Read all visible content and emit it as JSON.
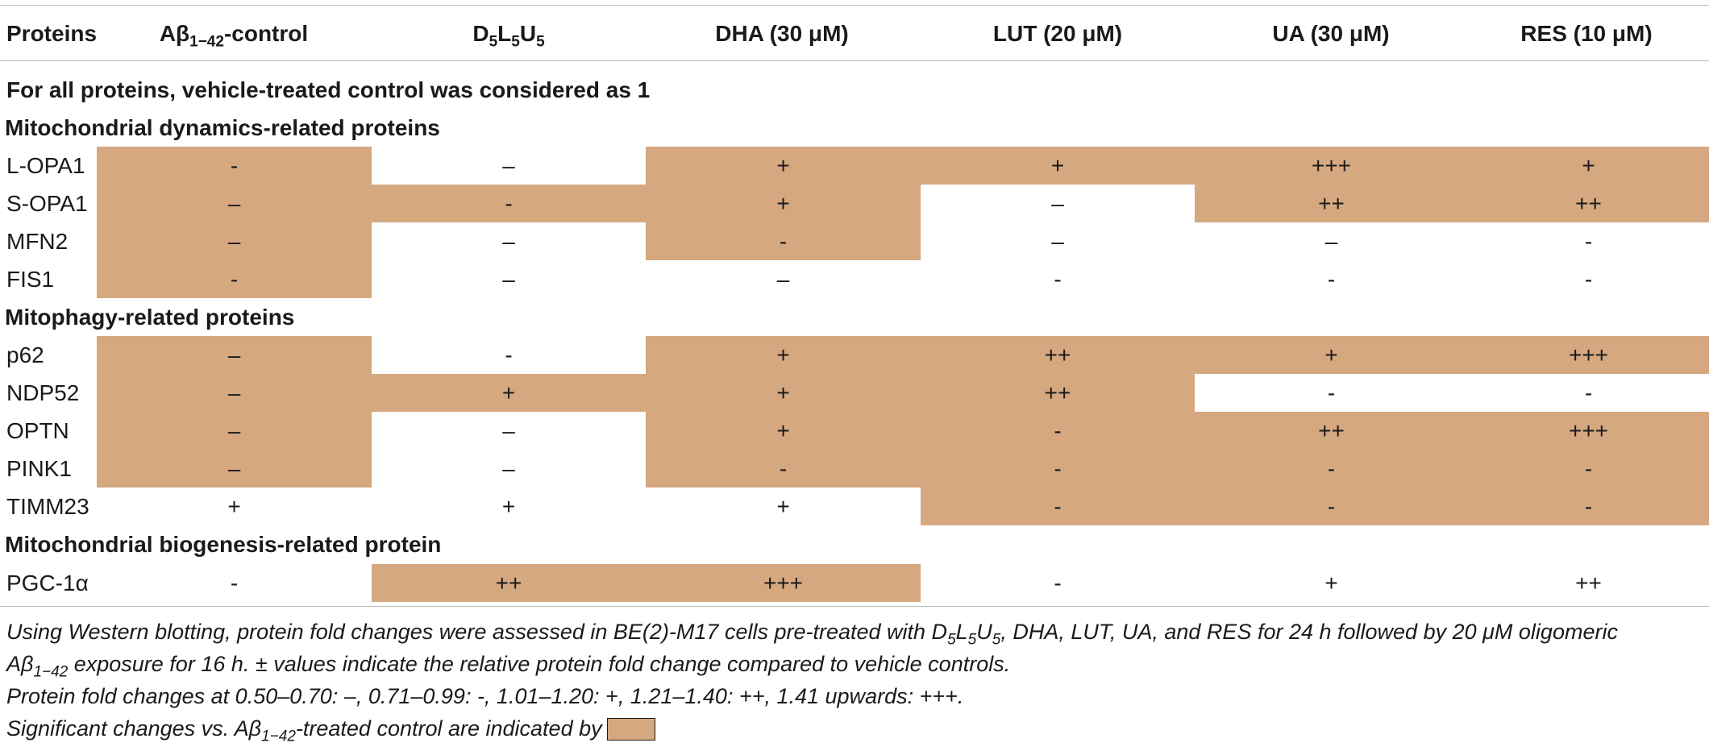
{
  "columns": {
    "proteins": "Proteins",
    "ab_control": {
      "main": "Aβ",
      "sub": "1−42",
      "tail": "-control"
    },
    "d5l5u5": {
      "p1": "D",
      "s1": "5",
      "p2": "L",
      "s2": "5",
      "p3": "U",
      "s3": "5"
    },
    "dha": "DHA (30 μM)",
    "lut": "LUT (20 μM)",
    "ua": "UA (30 μM)",
    "res": "RES (10 μM)"
  },
  "note": "For all proteins, vehicle-treated control was considered as 1",
  "sections": [
    {
      "title": "Mitochondrial dynamics-related proteins",
      "rows": [
        {
          "name": "L-OPA1",
          "values": [
            "-",
            "–",
            "+",
            "+",
            "+++",
            "+"
          ],
          "sig": [
            true,
            false,
            true,
            true,
            true,
            true
          ]
        },
        {
          "name": "S-OPA1",
          "values": [
            "–",
            "-",
            "+",
            "–",
            "++",
            "++"
          ],
          "sig": [
            true,
            true,
            true,
            false,
            true,
            true
          ]
        },
        {
          "name": "MFN2",
          "values": [
            "–",
            "–",
            "-",
            "–",
            "–",
            "-"
          ],
          "sig": [
            true,
            false,
            true,
            false,
            false,
            false
          ]
        },
        {
          "name": "FIS1",
          "values": [
            "-",
            "–",
            "–",
            "-",
            "-",
            "-"
          ],
          "sig": [
            true,
            false,
            false,
            false,
            false,
            false
          ]
        }
      ]
    },
    {
      "title": "Mitophagy-related proteins",
      "rows": [
        {
          "name": "p62",
          "values": [
            "–",
            "-",
            "+",
            "++",
            "+",
            "+++"
          ],
          "sig": [
            true,
            false,
            true,
            true,
            true,
            true
          ]
        },
        {
          "name": "NDP52",
          "values": [
            "–",
            "+",
            "+",
            "++",
            "-",
            "-"
          ],
          "sig": [
            true,
            true,
            true,
            true,
            false,
            false
          ]
        },
        {
          "name": "OPTN",
          "values": [
            "–",
            "–",
            "+",
            "-",
            "++",
            "+++"
          ],
          "sig": [
            true,
            false,
            true,
            true,
            true,
            true
          ]
        },
        {
          "name": "PINK1",
          "values": [
            "–",
            "–",
            "-",
            "-",
            "-",
            "-"
          ],
          "sig": [
            true,
            false,
            true,
            true,
            true,
            true
          ]
        },
        {
          "name": "TIMM23",
          "values": [
            "+",
            "+",
            "+",
            "-",
            "-",
            "-"
          ],
          "sig": [
            false,
            false,
            false,
            true,
            true,
            true
          ]
        }
      ]
    },
    {
      "title": "Mitochondrial biogenesis-related protein",
      "rows": [
        {
          "name": "PGC-1α",
          "values": [
            "-",
            "++",
            "+++",
            "-",
            "+",
            "++"
          ],
          "sig": [
            false,
            true,
            true,
            false,
            false,
            false
          ]
        }
      ]
    }
  ],
  "footnotes": {
    "line1": "Using Western blotting, protein fold changes were assessed in BE(2)-M17 cells pre-treated with D",
    "line1_s1": "5",
    "line1_b": "L",
    "line1_s2": "5",
    "line1_c": "U",
    "line1_s3": "5",
    "line1_d": ", DHA, LUT, UA, and RES for 24 h followed by 20 μM oligomeric",
    "line2_a": "Aβ",
    "line2_sub": "1−42",
    "line2_b": " exposure for 16 h. ± values indicate the relative protein fold change compared to vehicle controls.",
    "line3": "Protein fold changes at 0.50–0.70: –, 0.71–0.99: -, 1.01–1.20: +, 1.21–1.40: ++, 1.41 upwards: +++.",
    "line4_a": "Significant changes vs. Aβ",
    "line4_sub": "1−42",
    "line4_b": "-treated control are indicated by"
  },
  "colors": {
    "significant": "#d6a880"
  }
}
